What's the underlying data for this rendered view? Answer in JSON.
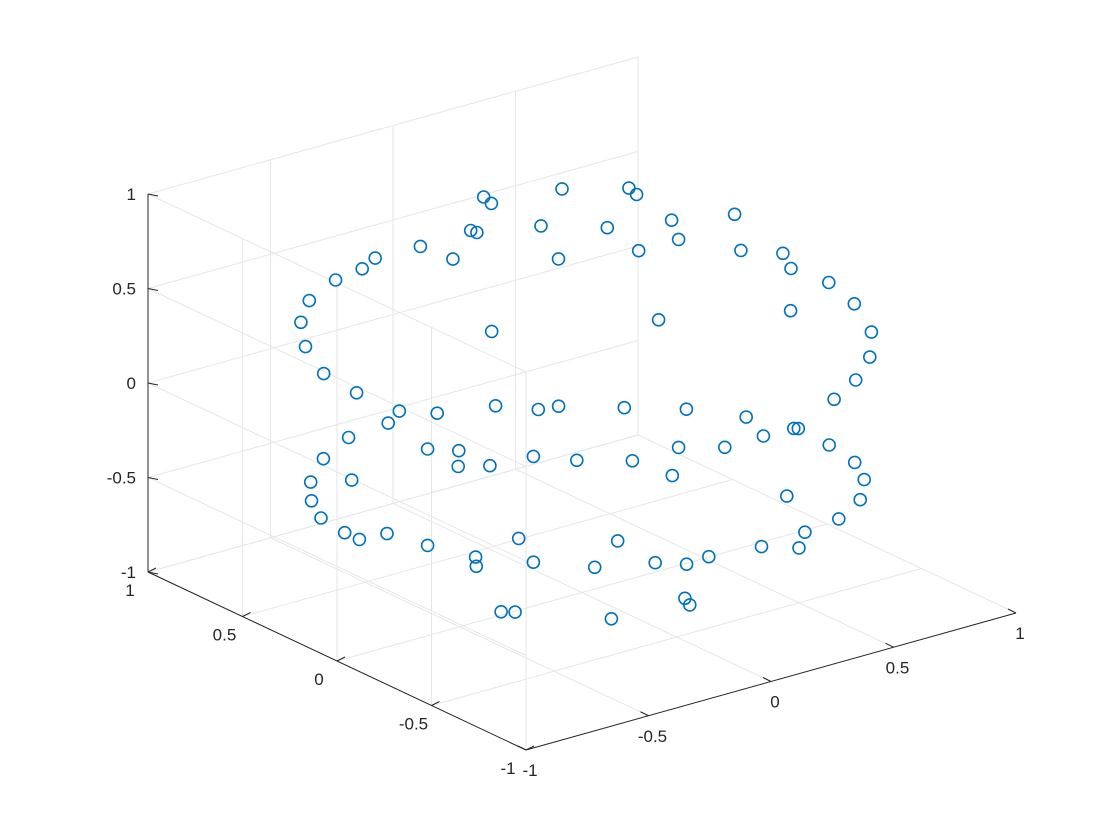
{
  "chart_data": {
    "type": "scatter3d",
    "title": "",
    "xlabel": "",
    "ylabel": "",
    "zlabel": "",
    "xlim": [
      -1,
      1
    ],
    "ylim": [
      -1,
      1
    ],
    "zlim": [
      -1,
      1
    ],
    "grid": true,
    "box": false,
    "view": {
      "azimuth": -37.5,
      "elevation": 30
    },
    "marker": "circle",
    "marker_color": "#0072BD",
    "x_ticks": [
      {
        "value": -1,
        "label": "-1"
      },
      {
        "value": -0.5,
        "label": "-0.5"
      },
      {
        "value": 0,
        "label": "0"
      },
      {
        "value": 0.5,
        "label": "0.5"
      },
      {
        "value": 1,
        "label": "1"
      }
    ],
    "y_ticks": [
      {
        "value": -1,
        "label": "-1"
      },
      {
        "value": -0.5,
        "label": "-0.5"
      },
      {
        "value": 0,
        "label": "0"
      },
      {
        "value": 0.5,
        "label": "0.5"
      },
      {
        "value": 1,
        "label": "1"
      }
    ],
    "z_ticks": [
      {
        "value": -1,
        "label": "-1"
      },
      {
        "value": -0.5,
        "label": "-0.5"
      },
      {
        "value": 0,
        "label": "0"
      },
      {
        "value": 0.5,
        "label": "0.5"
      },
      {
        "value": 1,
        "label": "1"
      }
    ],
    "series": [
      {
        "description": "points on the unit sphere arranged in two twisted bands and two polar caps",
        "points": [
          [
            -0.9,
            -0.35,
            0.25
          ],
          [
            -0.85,
            -0.45,
            0.27
          ],
          [
            -0.8,
            -0.55,
            0.22
          ],
          [
            -0.7,
            -0.65,
            0.28
          ],
          [
            -0.6,
            -0.75,
            0.27
          ],
          [
            -0.45,
            -0.85,
            0.26
          ],
          [
            -0.3,
            -0.9,
            0.3
          ],
          [
            -0.15,
            -0.95,
            0.27
          ],
          [
            0.0,
            -0.96,
            0.28
          ],
          [
            0.15,
            -0.95,
            0.26
          ],
          [
            0.35,
            -0.88,
            0.31
          ],
          [
            0.5,
            -0.8,
            0.32
          ],
          [
            0.65,
            -0.68,
            0.33
          ],
          [
            0.78,
            -0.52,
            0.34
          ],
          [
            0.88,
            -0.3,
            0.35
          ],
          [
            0.93,
            -0.1,
            0.35
          ],
          [
            0.93,
            0.1,
            0.33
          ],
          [
            0.88,
            0.3,
            0.35
          ],
          [
            0.78,
            0.5,
            0.35
          ],
          [
            0.62,
            0.67,
            0.39
          ],
          [
            0.45,
            0.8,
            0.4
          ],
          [
            0.25,
            0.88,
            0.4
          ],
          [
            0.05,
            0.92,
            0.38
          ],
          [
            -0.15,
            0.9,
            0.4
          ],
          [
            -0.35,
            0.85,
            0.38
          ],
          [
            -0.55,
            0.73,
            0.4
          ],
          [
            -0.7,
            0.58,
            0.41
          ],
          [
            -0.82,
            0.4,
            0.41
          ],
          [
            -0.9,
            0.2,
            0.39
          ],
          [
            -0.92,
            0.0,
            0.39
          ],
          [
            -0.9,
            -0.2,
            0.38
          ],
          [
            -0.95,
            -0.2,
            -0.25
          ],
          [
            -0.9,
            -0.35,
            -0.26
          ],
          [
            -0.82,
            -0.5,
            -0.28
          ],
          [
            -0.7,
            -0.65,
            -0.28
          ],
          [
            -0.55,
            -0.78,
            -0.3
          ],
          [
            -0.38,
            -0.88,
            -0.29
          ],
          [
            -0.2,
            -0.93,
            -0.3
          ],
          [
            0.0,
            -0.95,
            -0.31
          ],
          [
            0.2,
            -0.92,
            -0.32
          ],
          [
            0.4,
            -0.84,
            -0.36
          ],
          [
            0.58,
            -0.72,
            -0.38
          ],
          [
            0.72,
            -0.56,
            -0.4
          ],
          [
            0.82,
            -0.38,
            -0.43
          ],
          [
            0.87,
            -0.18,
            -0.45
          ],
          [
            0.88,
            0.02,
            -0.46
          ],
          [
            0.84,
            0.22,
            -0.48
          ],
          [
            0.75,
            0.42,
            -0.5
          ],
          [
            0.62,
            0.58,
            -0.52
          ],
          [
            0.46,
            0.72,
            -0.52
          ],
          [
            0.28,
            0.82,
            -0.5
          ],
          [
            0.08,
            0.87,
            -0.49
          ],
          [
            -0.12,
            0.87,
            -0.47
          ],
          [
            -0.32,
            0.82,
            -0.45
          ],
          [
            -0.5,
            0.72,
            -0.45
          ],
          [
            -0.66,
            0.58,
            -0.45
          ],
          [
            -0.78,
            0.42,
            -0.43
          ],
          [
            -0.88,
            0.24,
            -0.4
          ],
          [
            -0.93,
            0.05,
            -0.37
          ],
          [
            -0.3,
            0.2,
            0.93
          ],
          [
            -0.1,
            0.35,
            0.93
          ],
          [
            0.15,
            0.3,
            0.94
          ],
          [
            0.3,
            0.1,
            0.95
          ],
          [
            0.25,
            -0.15,
            0.95
          ],
          [
            0.0,
            -0.3,
            0.95
          ],
          [
            -0.25,
            -0.2,
            0.95
          ],
          [
            -0.45,
            0.1,
            0.88
          ],
          [
            0.5,
            0.4,
            0.77
          ],
          [
            0.55,
            -0.35,
            0.76
          ],
          [
            -0.15,
            -0.6,
            0.78
          ],
          [
            0.1,
            0.65,
            0.75
          ],
          [
            -0.6,
            -0.3,
            0.74
          ],
          [
            -0.55,
            0.45,
            0.7
          ],
          [
            0.7,
            0.1,
            0.7
          ],
          [
            0.35,
            -0.65,
            0.67
          ],
          [
            -0.2,
            0.3,
            -0.93
          ],
          [
            0.05,
            0.4,
            -0.92
          ],
          [
            0.3,
            0.2,
            -0.93
          ],
          [
            0.35,
            -0.1,
            -0.93
          ],
          [
            0.15,
            -0.35,
            -0.92
          ],
          [
            -0.15,
            -0.35,
            -0.92
          ],
          [
            -0.35,
            -0.1,
            -0.93
          ],
          [
            0.6,
            0.3,
            -0.74
          ],
          [
            0.5,
            -0.5,
            -0.71
          ],
          [
            -0.1,
            -0.7,
            -0.7
          ],
          [
            -0.6,
            -0.35,
            -0.72
          ],
          [
            -0.6,
            0.4,
            -0.69
          ],
          [
            0.05,
            0.72,
            -0.69
          ],
          [
            0.72,
            -0.15,
            -0.68
          ],
          [
            -0.4,
            0.7,
            -0.59
          ],
          [
            0.4,
            0.75,
            -0.53
          ]
        ]
      }
    ]
  }
}
